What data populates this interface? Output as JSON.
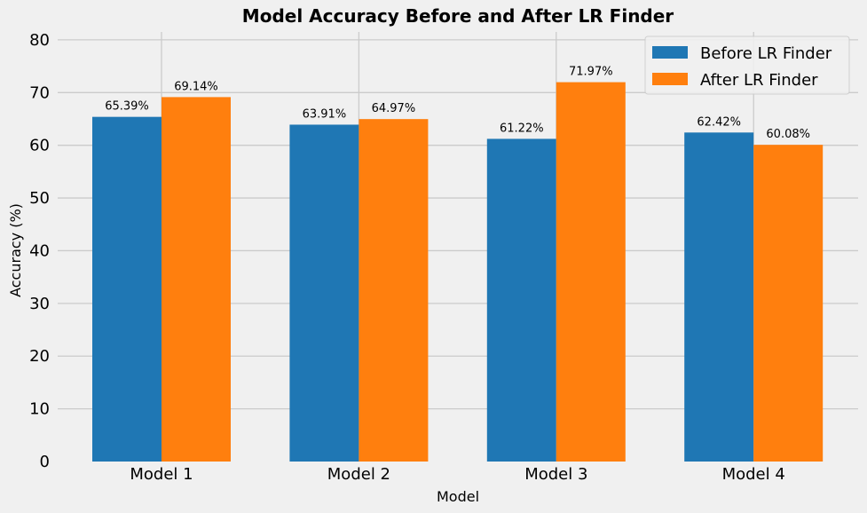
{
  "chart_data": {
    "type": "bar",
    "title": "Model Accuracy Before and After LR Finder",
    "xlabel": "Model",
    "ylabel": "Accuracy (%)",
    "categories": [
      "Model 1",
      "Model 2",
      "Model 3",
      "Model 4"
    ],
    "series": [
      {
        "name": "Before LR Finder",
        "color": "#1f77b4",
        "values": [
          65.39,
          63.91,
          61.22,
          62.42
        ],
        "labels": [
          "65.39%",
          "63.91%",
          "61.22%",
          "62.42%"
        ]
      },
      {
        "name": "After LR Finder",
        "color": "#ff7f0e",
        "values": [
          69.14,
          64.97,
          71.97,
          60.08
        ],
        "labels": [
          "69.14%",
          "64.97%",
          "71.97%",
          "60.08%"
        ]
      }
    ],
    "ylim": [
      0,
      81.5
    ],
    "yticks": [
      0,
      10,
      20,
      30,
      40,
      50,
      60,
      70,
      80
    ],
    "grid": true,
    "legend_position": "top-right"
  }
}
